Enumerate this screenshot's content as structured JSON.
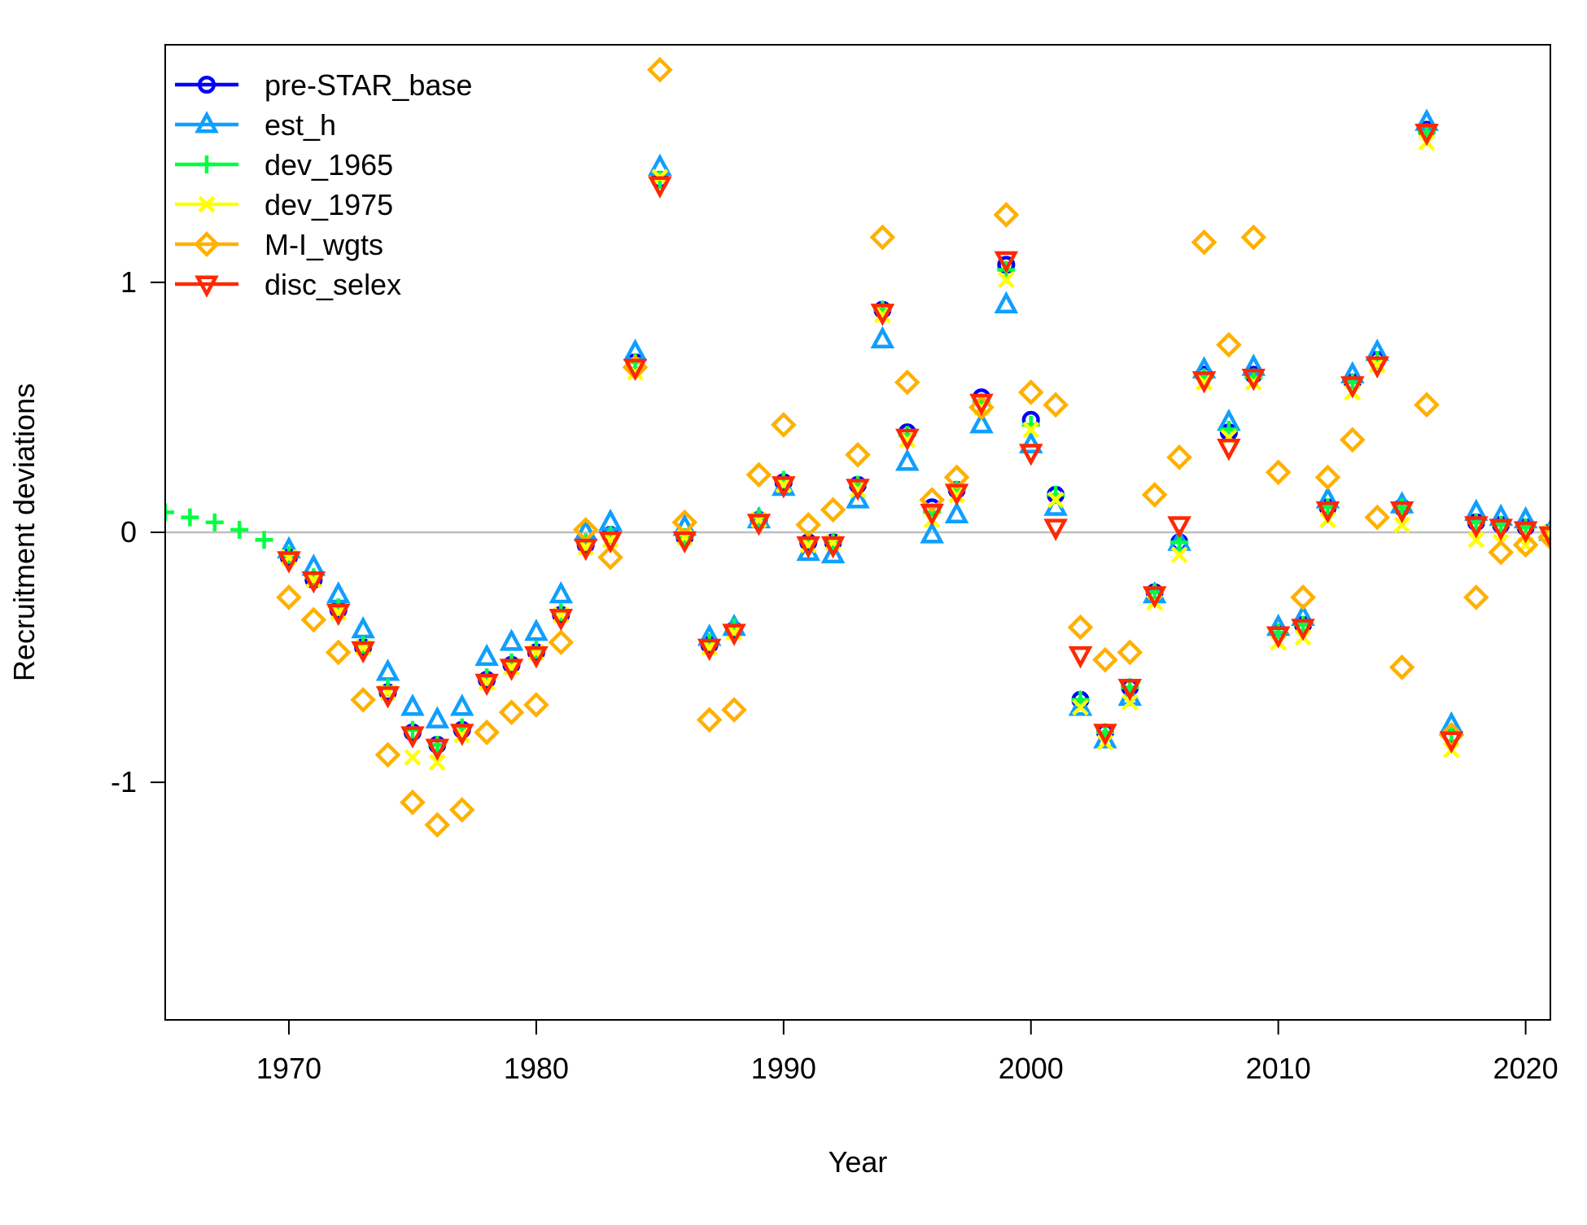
{
  "chart_data": {
    "type": "scatter",
    "title": "",
    "xlabel": "Year",
    "ylabel": "Recruitment deviations",
    "xlim": [
      1965,
      2021
    ],
    "ylim": [
      -1.95,
      1.95
    ],
    "x_ticks": [
      1970,
      1980,
      1990,
      2000,
      2010,
      2020
    ],
    "x_tick_labels": [
      "1970",
      "1980",
      "1990",
      "2000",
      "2010",
      "2020"
    ],
    "y_ticks": [
      -1,
      0,
      1
    ],
    "y_tick_labels": [
      "-1",
      "0",
      "1"
    ],
    "reference_line": {
      "y": 0,
      "color": "#bebebe"
    },
    "grid": false,
    "legend_position": "top-left",
    "series": [
      {
        "name": "pre-STAR_base",
        "color": "#0000ff",
        "marker": "circle",
        "x": [
          1970,
          1971,
          1972,
          1973,
          1974,
          1975,
          1976,
          1977,
          1978,
          1979,
          1980,
          1981,
          1982,
          1983,
          1984,
          1985,
          1986,
          1987,
          1988,
          1989,
          1990,
          1991,
          1992,
          1993,
          1994,
          1995,
          1996,
          1997,
          1998,
          1999,
          2000,
          2001,
          2002,
          2003,
          2004,
          2005,
          2006,
          2007,
          2008,
          2009,
          2010,
          2011,
          2012,
          2013,
          2014,
          2015,
          2016,
          2017,
          2018,
          2019,
          2020,
          2021
        ],
        "y": [
          -0.1,
          -0.19,
          -0.31,
          -0.46,
          -0.64,
          -0.8,
          -0.85,
          -0.79,
          -0.59,
          -0.53,
          -0.48,
          -0.33,
          -0.05,
          -0.01,
          0.68,
          1.41,
          -0.02,
          -0.45,
          -0.39,
          0.05,
          0.2,
          -0.04,
          -0.04,
          0.19,
          0.89,
          0.4,
          0.1,
          0.17,
          0.54,
          1.07,
          0.45,
          0.15,
          -0.67,
          -0.8,
          -0.62,
          -0.24,
          -0.04,
          0.63,
          0.4,
          0.63,
          -0.4,
          -0.37,
          0.1,
          0.6,
          0.69,
          0.1,
          1.61,
          -0.81,
          0.04,
          0.03,
          0.02,
          0
        ]
      },
      {
        "name": "est_h",
        "color": "#0f9fff",
        "marker": "triangle-up",
        "x": [
          1970,
          1971,
          1972,
          1973,
          1974,
          1975,
          1976,
          1977,
          1978,
          1979,
          1980,
          1981,
          1982,
          1983,
          1984,
          1985,
          1986,
          1987,
          1988,
          1989,
          1990,
          1991,
          1992,
          1993,
          1994,
          1995,
          1996,
          1997,
          1998,
          1999,
          2000,
          2001,
          2002,
          2003,
          2004,
          2005,
          2006,
          2007,
          2008,
          2009,
          2010,
          2011,
          2012,
          2013,
          2014,
          2015,
          2016,
          2017,
          2018,
          2019,
          2020,
          2021
        ],
        "y": [
          -0.07,
          -0.14,
          -0.25,
          -0.39,
          -0.56,
          -0.7,
          -0.75,
          -0.7,
          -0.5,
          -0.44,
          -0.4,
          -0.25,
          0,
          0.04,
          0.72,
          1.46,
          0.02,
          -0.42,
          -0.38,
          0.05,
          0.18,
          -0.08,
          -0.09,
          0.13,
          0.77,
          0.28,
          -0.01,
          0.07,
          0.43,
          0.91,
          0.35,
          0.1,
          -0.7,
          -0.83,
          -0.66,
          -0.25,
          -0.04,
          0.65,
          0.44,
          0.66,
          -0.38,
          -0.34,
          0.13,
          0.63,
          0.72,
          0.11,
          1.64,
          -0.77,
          0.08,
          0.06,
          0.05,
          0
        ]
      },
      {
        "name": "dev_1965",
        "color": "#00ff40",
        "marker": "plus",
        "x": [
          1965,
          1966,
          1967,
          1968,
          1969,
          1970,
          1971,
          1972,
          1973,
          1974,
          1975,
          1976,
          1977,
          1978,
          1979,
          1980,
          1981,
          1982,
          1983,
          1984,
          1985,
          1986,
          1987,
          1988,
          1989,
          1990,
          1991,
          1992,
          1993,
          1994,
          1995,
          1996,
          1997,
          1998,
          1999,
          2000,
          2001,
          2002,
          2003,
          2004,
          2005,
          2006,
          2007,
          2008,
          2009,
          2010,
          2011,
          2012,
          2013,
          2014,
          2015,
          2016,
          2017,
          2018,
          2019,
          2020,
          2021
        ],
        "y": [
          0.08,
          0.06,
          0.04,
          0.01,
          -0.03,
          -0.09,
          -0.18,
          -0.3,
          -0.45,
          -0.62,
          -0.79,
          -0.85,
          -0.78,
          -0.58,
          -0.52,
          -0.47,
          -0.32,
          -0.04,
          -0.01,
          0.68,
          1.41,
          -0.02,
          -0.44,
          -0.38,
          0.06,
          0.21,
          -0.03,
          -0.04,
          0.19,
          0.89,
          0.39,
          0.08,
          0.17,
          0.52,
          1.05,
          0.43,
          0.15,
          -0.67,
          -0.8,
          -0.62,
          -0.24,
          -0.04,
          0.62,
          0.41,
          0.62,
          -0.4,
          -0.37,
          0.1,
          0.6,
          0.69,
          0.1,
          1.6,
          -0.8,
          0.04,
          0.03,
          0.02,
          0
        ]
      },
      {
        "name": "dev_1975",
        "color": "#ffff00",
        "marker": "x",
        "x": [
          1970,
          1971,
          1972,
          1973,
          1974,
          1975,
          1976,
          1977,
          1978,
          1979,
          1980,
          1981,
          1982,
          1983,
          1984,
          1985,
          1986,
          1987,
          1988,
          1989,
          1990,
          1991,
          1992,
          1993,
          1994,
          1995,
          1996,
          1997,
          1998,
          1999,
          2000,
          2001,
          2002,
          2003,
          2004,
          2005,
          2006,
          2007,
          2008,
          2009,
          2010,
          2011,
          2012,
          2013,
          2014,
          2015,
          2016,
          2017,
          2018,
          2019,
          2020,
          2021
        ],
        "y": [
          -0.1,
          -0.19,
          -0.32,
          -0.46,
          -0.64,
          -0.9,
          -0.92,
          -0.81,
          -0.6,
          -0.54,
          -0.48,
          -0.33,
          -0.06,
          -0.03,
          0.64,
          1.42,
          -0.02,
          -0.46,
          -0.4,
          0.05,
          0.19,
          -0.05,
          -0.04,
          0.17,
          0.87,
          0.37,
          0.05,
          0.15,
          0.5,
          1.01,
          0.41,
          0.13,
          -0.7,
          -0.84,
          -0.68,
          -0.28,
          -0.09,
          0.6,
          0.38,
          0.6,
          -0.44,
          -0.42,
          0.05,
          0.56,
          0.67,
          0.03,
          1.56,
          -0.87,
          -0.03,
          -0.04,
          -0.05,
          0
        ]
      },
      {
        "name": "M-I_wgts",
        "color": "#ffb000",
        "marker": "diamond",
        "x": [
          1970,
          1971,
          1972,
          1973,
          1974,
          1975,
          1976,
          1977,
          1978,
          1979,
          1980,
          1981,
          1982,
          1983,
          1984,
          1985,
          1986,
          1987,
          1988,
          1989,
          1990,
          1991,
          1992,
          1993,
          1994,
          1995,
          1996,
          1997,
          1998,
          1999,
          2000,
          2001,
          2002,
          2003,
          2004,
          2005,
          2006,
          2007,
          2008,
          2009,
          2010,
          2011,
          2012,
          2013,
          2014,
          2015,
          2016,
          2017,
          2018,
          2019,
          2020,
          2021
        ],
        "y": [
          -0.26,
          -0.35,
          -0.48,
          -0.67,
          -0.89,
          -1.08,
          -1.17,
          -1.11,
          -0.8,
          -0.72,
          -0.69,
          -0.44,
          0.01,
          -0.1,
          0.66,
          1.85,
          0.04,
          -0.75,
          -0.71,
          0.23,
          0.43,
          0.03,
          0.09,
          0.31,
          1.18,
          0.6,
          0.13,
          0.22,
          0.5,
          1.27,
          0.56,
          0.51,
          -0.38,
          -0.51,
          -0.48,
          0.15,
          0.3,
          1.16,
          0.75,
          1.18,
          0.24,
          -0.26,
          0.22,
          0.37,
          0.06,
          -0.54,
          0.51,
          -0.81,
          -0.26,
          -0.08,
          -0.05,
          -0.02
        ]
      },
      {
        "name": "disc_selex",
        "color": "#ff2800",
        "marker": "triangle-down",
        "x": [
          1970,
          1971,
          1972,
          1973,
          1974,
          1975,
          1976,
          1977,
          1978,
          1979,
          1980,
          1981,
          1982,
          1983,
          1984,
          1985,
          1986,
          1987,
          1988,
          1989,
          1990,
          1991,
          1992,
          1993,
          1994,
          1995,
          1996,
          1997,
          1998,
          1999,
          2000,
          2001,
          2002,
          2003,
          2004,
          2005,
          2006,
          2007,
          2008,
          2009,
          2010,
          2011,
          2012,
          2013,
          2014,
          2015,
          2016,
          2017,
          2018,
          2019,
          2020,
          2021
        ],
        "y": [
          -0.11,
          -0.19,
          -0.32,
          -0.47,
          -0.65,
          -0.81,
          -0.86,
          -0.8,
          -0.6,
          -0.54,
          -0.49,
          -0.34,
          -0.06,
          -0.03,
          0.66,
          1.39,
          -0.03,
          -0.46,
          -0.4,
          0.04,
          0.19,
          -0.05,
          -0.05,
          0.18,
          0.88,
          0.38,
          0.08,
          0.16,
          0.52,
          1.09,
          0.32,
          0.02,
          -0.49,
          -0.8,
          -0.62,
          -0.25,
          0.03,
          0.61,
          0.34,
          0.62,
          -0.41,
          -0.38,
          0.09,
          0.59,
          0.67,
          0.09,
          1.6,
          -0.83,
          0.03,
          0.02,
          0.01,
          -0.01
        ]
      }
    ]
  }
}
